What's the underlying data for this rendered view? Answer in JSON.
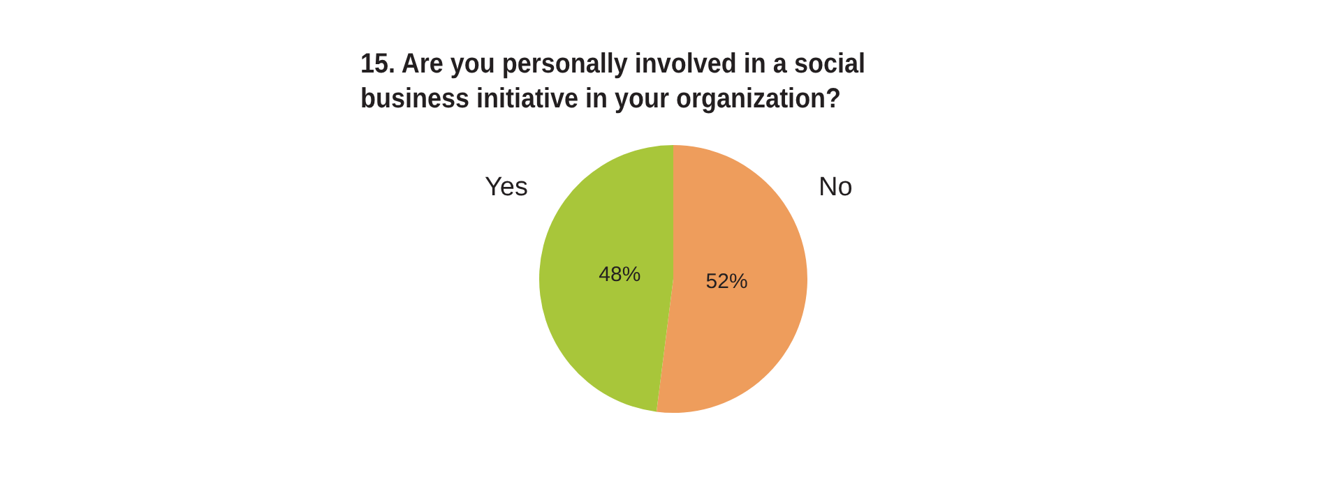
{
  "chart_data": {
    "type": "pie",
    "title": "15. Are you personally involved in a social business initiative in your organization?",
    "categories": [
      "No",
      "Yes"
    ],
    "values": [
      52,
      48
    ],
    "value_labels": [
      "52%",
      "48%"
    ],
    "colors": [
      "#ee9d5c",
      "#a8c63a"
    ],
    "legend": false
  }
}
